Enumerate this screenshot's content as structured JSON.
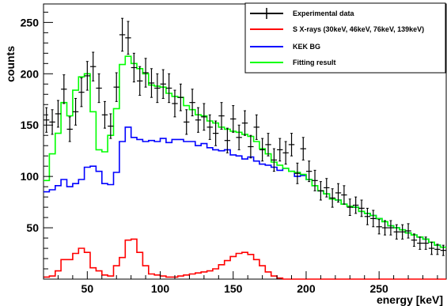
{
  "chart_data": {
    "type": "line",
    "xlabel": "energy [keV]",
    "ylabel": "counts",
    "xlim": [
      20,
      296
    ],
    "ylim": [
      0,
      268
    ],
    "x_ticks": [
      50,
      100,
      150,
      200,
      250
    ],
    "y_ticks": [
      50,
      100,
      150,
      200,
      250
    ],
    "grid": false,
    "legend_position": "top-right",
    "bin_edges": [
      20,
      24,
      28,
      32,
      36,
      40,
      44,
      48,
      52,
      56,
      60,
      64,
      68,
      72,
      76,
      80,
      84,
      88,
      92,
      96,
      100,
      104,
      108,
      112,
      116,
      120,
      124,
      128,
      132,
      136,
      140,
      144,
      148,
      152,
      156,
      160,
      164,
      168,
      172,
      176,
      180,
      184,
      188,
      192,
      196,
      200,
      204,
      208,
      212,
      216,
      220,
      224,
      228,
      232,
      236,
      240,
      244,
      248,
      252,
      256,
      260,
      264,
      268,
      272,
      276,
      280,
      284,
      288,
      292,
      296
    ],
    "series": [
      {
        "name": "Experimental data",
        "color": "#000000",
        "style": "points-with-errors",
        "x": [
          22,
          26,
          30,
          34,
          38,
          42,
          46,
          50,
          54,
          58,
          62,
          66,
          70,
          74,
          78,
          82,
          86,
          90,
          94,
          98,
          102,
          106,
          110,
          114,
          118,
          122,
          126,
          130,
          134,
          138,
          142,
          146,
          150,
          154,
          158,
          162,
          166,
          170,
          174,
          178,
          182,
          186,
          190,
          194,
          198,
          202,
          206,
          210,
          214,
          218,
          222,
          226,
          230,
          234,
          238,
          242,
          246,
          250,
          254,
          258,
          262,
          266,
          270,
          274,
          278,
          282,
          286,
          290,
          294
        ],
        "values": [
          155,
          153,
          161,
          185,
          146,
          163,
          182,
          198,
          207,
          186,
          160,
          149,
          187,
          238,
          235,
          206,
          193,
          201,
          191,
          186,
          190,
          186,
          171,
          177,
          153,
          172,
          155,
          158,
          148,
          142,
          159,
          135,
          156,
          138,
          152,
          129,
          148,
          126,
          131,
          116,
          126,
          123,
          131,
          103,
          127,
          105,
          96,
          86,
          89,
          79,
          84,
          82,
          70,
          72,
          69,
          61,
          59,
          51,
          50,
          50,
          46,
          46,
          47,
          38,
          35,
          35,
          30,
          29,
          28
        ],
        "errors": [
          12,
          12,
          13,
          14,
          12,
          13,
          14,
          14,
          14,
          14,
          13,
          12,
          14,
          16,
          16,
          14,
          14,
          14,
          14,
          14,
          14,
          14,
          13,
          13,
          12,
          13,
          12,
          13,
          12,
          12,
          13,
          12,
          13,
          12,
          12,
          11,
          12,
          11,
          11,
          11,
          11,
          11,
          11,
          10,
          11,
          10,
          10,
          9,
          9,
          9,
          9,
          9,
          8,
          8,
          8,
          8,
          8,
          7,
          7,
          7,
          7,
          7,
          7,
          6,
          6,
          6,
          6,
          5,
          5
        ]
      },
      {
        "name": "S X-rays (30keV, 46keV, 76keV, 139keV)",
        "color": "#ff0000",
        "style": "step",
        "values": [
          2,
          3,
          8,
          19,
          19,
          25,
          30,
          26,
          11,
          8,
          4,
          3,
          13,
          21,
          38,
          39,
          26,
          13,
          5,
          4,
          3,
          2,
          2,
          3,
          4,
          5,
          6,
          7,
          8,
          10,
          14,
          18,
          22,
          25,
          26,
          24,
          19,
          13,
          7,
          3,
          1,
          0,
          0,
          0,
          0,
          0,
          0,
          0,
          0,
          0,
          0,
          0,
          0,
          0,
          0,
          0,
          0,
          0,
          0,
          0,
          0,
          0,
          0,
          0,
          0,
          0,
          0,
          0,
          0
        ]
      },
      {
        "name": "KEK BG",
        "color": "#0000ff",
        "style": "step",
        "values": [
          85,
          87,
          91,
          97,
          90,
          93,
          97,
          109,
          110,
          105,
          93,
          92,
          104,
          134,
          148,
          138,
          136,
          134,
          135,
          134,
          137,
          133,
          136,
          136,
          134,
          134,
          130,
          132,
          128,
          126,
          125,
          126,
          121,
          120,
          117,
          119,
          115,
          112,
          111,
          109,
          106,
          108,
          105,
          100,
          101,
          97,
          91,
          86,
          83,
          78,
          77,
          73,
          71,
          70,
          66,
          64,
          62,
          59,
          56,
          52,
          50,
          48,
          45,
          43,
          41,
          39,
          36,
          33,
          31
        ]
      },
      {
        "name": "Fitting result",
        "color": "#00ff00",
        "style": "step",
        "values": [
          96,
          122,
          142,
          172,
          159,
          184,
          197,
          200,
          163,
          126,
          124,
          140,
          166,
          209,
          217,
          210,
          205,
          200,
          189,
          188,
          187,
          181,
          178,
          177,
          169,
          165,
          160,
          159,
          154,
          152,
          148,
          146,
          144,
          143,
          141,
          139,
          134,
          127,
          122,
          114,
          111,
          108,
          105,
          104,
          102,
          97,
          91,
          86,
          83,
          78,
          77,
          73,
          71,
          70,
          66,
          64,
          62,
          59,
          56,
          52,
          50,
          48,
          45,
          43,
          41,
          39,
          36,
          33,
          31
        ]
      }
    ]
  }
}
